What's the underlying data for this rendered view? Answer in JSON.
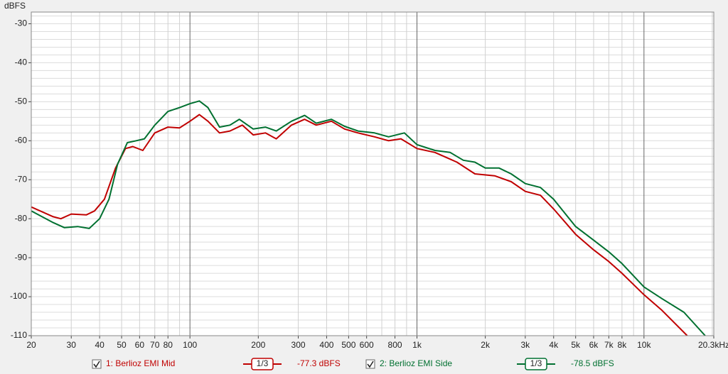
{
  "chart_data": {
    "type": "line",
    "y_label": "dBFS",
    "xlim": [
      20,
      20300
    ],
    "xscale": "log",
    "xticks": [
      20,
      30,
      40,
      50,
      60,
      70,
      80,
      100,
      200,
      300,
      400,
      500,
      600,
      800,
      {
        "value": 1000,
        "label": "1k"
      },
      {
        "value": 2000,
        "label": "2k"
      },
      {
        "value": 3000,
        "label": "3k"
      },
      {
        "value": 4000,
        "label": "4k"
      },
      {
        "value": 5000,
        "label": "5k"
      },
      {
        "value": 6000,
        "label": "6k"
      },
      {
        "value": 7000,
        "label": "7k"
      },
      {
        "value": 8000,
        "label": "8k"
      },
      {
        "value": 10000,
        "label": "10k"
      },
      {
        "value": 20300,
        "label": "20.3kHz"
      }
    ],
    "ylim": [
      -110,
      -27
    ],
    "yticks": [
      -30,
      -40,
      -50,
      -60,
      -70,
      -80,
      -90,
      -100,
      -110
    ],
    "grid": true,
    "series": [
      {
        "name": "1: Berlioz EMI Mid",
        "color": "#c00000",
        "smoothing": "1/3",
        "level": "-77.3 dBFS",
        "x": [
          20,
          25,
          27,
          30,
          35,
          38,
          42,
          47,
          52,
          56,
          62,
          70,
          80,
          90,
          100,
          110,
          120,
          135,
          150,
          170,
          190,
          215,
          240,
          280,
          320,
          360,
          420,
          480,
          550,
          650,
          750,
          850,
          1000,
          1200,
          1500,
          1800,
          2200,
          2600,
          3000,
          3500,
          4000,
          5000,
          6000,
          7000,
          8000,
          10000,
          12000,
          15500
        ],
        "values": [
          -77,
          -79.5,
          -80,
          -78.8,
          -79,
          -78,
          -75,
          -67,
          -62,
          -61.5,
          -62.5,
          -58,
          -56.5,
          -56.7,
          -55,
          -53.3,
          -55,
          -58,
          -57.5,
          -56,
          -58.5,
          -58,
          -59.5,
          -56,
          -54.5,
          -56,
          -55,
          -57,
          -58,
          -59,
          -60,
          -59.5,
          -62,
          -63,
          -65.5,
          -68.5,
          -69,
          -70.5,
          -73,
          -74,
          -77.5,
          -84,
          -88,
          -91,
          -94,
          -99.5,
          -103.5,
          -110
        ]
      },
      {
        "name": "2: Berlioz EMI Side",
        "color": "#007030",
        "smoothing": "1/3",
        "level": "-78.5 dBFS",
        "x": [
          20,
          25,
          28,
          32,
          36,
          40,
          44,
          48,
          53,
          58,
          63,
          70,
          80,
          90,
          100,
          110,
          120,
          135,
          150,
          165,
          190,
          215,
          240,
          280,
          320,
          360,
          420,
          480,
          550,
          650,
          750,
          880,
          1000,
          1200,
          1400,
          1600,
          1800,
          2000,
          2300,
          2600,
          3000,
          3500,
          4000,
          5000,
          6000,
          7000,
          8000,
          10000,
          12000,
          15000,
          18600
        ],
        "values": [
          -78,
          -81,
          -82.3,
          -82,
          -82.5,
          -80,
          -75,
          -66,
          -60.5,
          -60,
          -59.5,
          -56,
          -52.5,
          -51.5,
          -50.5,
          -49.8,
          -51.5,
          -56.5,
          -56,
          -54.5,
          -57,
          -56.5,
          -57.5,
          -55,
          -53.5,
          -55.5,
          -54.5,
          -56.3,
          -57.5,
          -58,
          -59,
          -58,
          -61,
          -62.5,
          -63,
          -65,
          -65.5,
          -67,
          -67,
          -68.5,
          -71,
          -72,
          -75,
          -82,
          -85.5,
          -88.5,
          -91.5,
          -97.5,
          -100.5,
          -104,
          -110
        ]
      }
    ]
  }
}
